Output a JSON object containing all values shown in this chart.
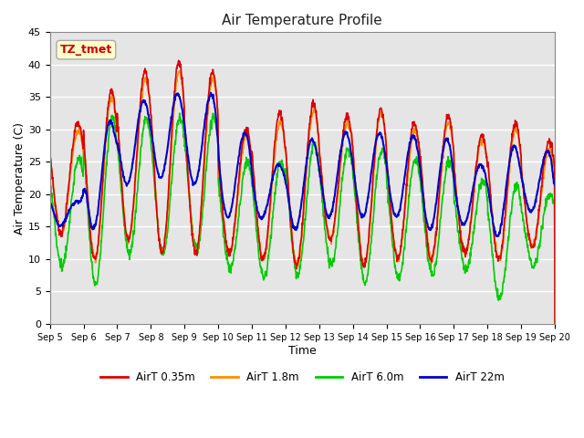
{
  "title": "Air Temperature Profile",
  "xlabel": "Time",
  "ylabel": "Air Temperature (C)",
  "ylim": [
    0,
    45
  ],
  "background_color": "#ffffff",
  "plot_bg_color": "#e5e5e5",
  "grid_color": "#ffffff",
  "series_colors": {
    "AirT 0.35m": "#dd0000",
    "AirT 1.8m": "#ff8c00",
    "AirT 6.0m": "#00cc00",
    "AirT 22m": "#0000cc"
  },
  "legend_labels": [
    "AirT 0.35m",
    "AirT 1.8m",
    "AirT 6.0m",
    "AirT 22m"
  ],
  "x_tick_labels": [
    "Sep 5",
    "Sep 6",
    "Sep 7",
    "Sep 8",
    "Sep 9",
    "Sep 10",
    "Sep 11",
    "Sep 12",
    "Sep 13",
    "Sep 14",
    "Sep 15",
    "Sep 16",
    "Sep 17",
    "Sep 18",
    "Sep 19",
    "Sep 20"
  ],
  "annotation_text": "TZ_tmet",
  "annotation_color": "#cc0000",
  "annotation_bg": "#ffffcc",
  "annotation_border": "#aaaaaa"
}
